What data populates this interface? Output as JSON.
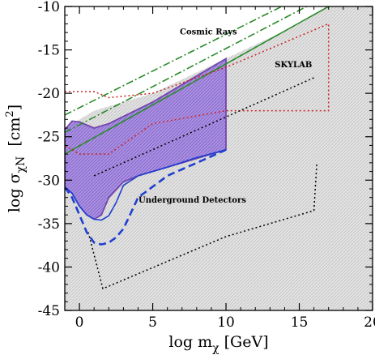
{
  "chart_data": {
    "type": "line",
    "xlim": [
      -1,
      20
    ],
    "ylim": [
      -45,
      -10
    ],
    "x_ticks": [
      0,
      5,
      10,
      15,
      20
    ],
    "y_ticks": [
      -45,
      -40,
      -35,
      -30,
      -25,
      -20,
      -15,
      -10
    ],
    "x_tick_labels": [
      "0",
      "5",
      "10",
      "15",
      "20"
    ],
    "y_tick_labels": [
      "-45",
      "-40",
      "-35",
      "-30",
      "-25",
      "-20",
      "-15",
      "-10"
    ],
    "xlabel": {
      "main": "log m",
      "sub": "χ",
      "unit": " [GeV]"
    },
    "ylabel": {
      "main": "log σ",
      "sub": "χN",
      "unit_pre": "  [cm",
      "sup": "2",
      "unit_post": "]"
    },
    "grid": false,
    "annotations": [
      {
        "text": "Cosmic Rays",
        "x": 8.8,
        "y": -13.2
      },
      {
        "text": "SKYLAB",
        "x": 14.6,
        "y": -17.0
      },
      {
        "text": "Underground Detectors",
        "x": 7.7,
        "y": -32.6
      }
    ],
    "regions": [
      {
        "name": "gray-excluded",
        "fill": "#d9d9d9",
        "points": [
          [
            -1,
            -24
          ],
          [
            1,
            -22
          ],
          [
            5,
            -20
          ],
          [
            10,
            -16
          ],
          [
            15,
            -12
          ],
          [
            17,
            -10
          ],
          [
            20,
            -10
          ],
          [
            20,
            -45
          ],
          [
            -1,
            -45
          ]
        ]
      },
      {
        "name": "purple-band",
        "fill": "#9b7fd6",
        "edge": "#6a3aa8",
        "points": [
          [
            -1,
            -24.2
          ],
          [
            -0.5,
            -23.2
          ],
          [
            0,
            -23.3
          ],
          [
            1,
            -24
          ],
          [
            2,
            -23.5
          ],
          [
            5,
            -21
          ],
          [
            8,
            -18
          ],
          [
            10,
            -16
          ],
          [
            10,
            -26.5
          ],
          [
            6,
            -28.5
          ],
          [
            4,
            -29.5
          ],
          [
            3,
            -30.2
          ],
          [
            2,
            -32
          ],
          [
            1.5,
            -34
          ],
          [
            1,
            -34.5
          ],
          [
            0.5,
            -34
          ],
          [
            0,
            -33
          ],
          [
            -0.5,
            -31.5
          ],
          [
            -1,
            -30.8
          ]
        ]
      }
    ],
    "series": [
      {
        "color": "#2a8a2a",
        "style": "solid",
        "x": [
          -1,
          17
        ],
        "y": [
          -27,
          -10
        ]
      },
      {
        "color": "#2a8a2a",
        "style": "dashdot",
        "x": [
          -1,
          15.5
        ],
        "y": [
          -24.5,
          -10
        ]
      },
      {
        "color": "#2a8a2a",
        "style": "dashdot",
        "x": [
          -1,
          13.8
        ],
        "y": [
          -22.5,
          -10
        ]
      },
      {
        "color": "#cc2222",
        "style": "dotted",
        "x": [
          -1,
          1,
          2,
          5,
          10,
          17,
          17,
          10,
          5,
          2,
          0,
          -1
        ],
        "y": [
          -19.8,
          -19.8,
          -20.5,
          -20,
          -17,
          -12,
          -22,
          -22,
          -23.5,
          -27,
          -27,
          -26
        ]
      },
      {
        "color": "#000000",
        "style": "dotted",
        "x": [
          0.6,
          1.6,
          10,
          16,
          16.2
        ],
        "y": [
          -36,
          -42.5,
          -36.5,
          -33.5,
          -28
        ]
      },
      {
        "color": "#000000",
        "style": "dotted",
        "x": [
          1,
          16
        ],
        "y": [
          -29.5,
          -18.2
        ]
      },
      {
        "color": "#1f3fd0",
        "style": "dashed",
        "x": [
          -1,
          -0.5,
          0,
          0.5,
          1,
          1.5,
          2,
          2.5,
          3,
          4,
          6,
          8,
          10
        ],
        "y": [
          -30.8,
          -32,
          -34,
          -36,
          -37.2,
          -37.4,
          -37.2,
          -36.6,
          -35.6,
          -32,
          -29.5,
          -28,
          -26.5
        ]
      },
      {
        "color": "#1f3fd0",
        "style": "solid",
        "x": [
          -1,
          -0.5,
          0,
          0.5,
          1,
          1.5,
          2,
          2.5,
          3,
          4,
          6,
          8,
          10
        ],
        "y": [
          -30.8,
          -31.5,
          -33,
          -34,
          -34.5,
          -34.6,
          -34.1,
          -32.6,
          -30.6,
          -29.5,
          -28.5,
          -27.4,
          -26.5
        ]
      }
    ]
  }
}
